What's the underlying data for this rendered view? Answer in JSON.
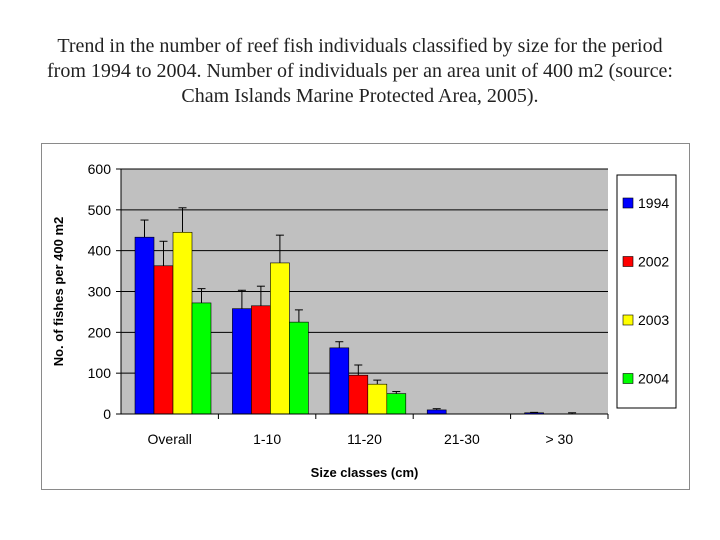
{
  "slide": {
    "title": "Trend in the number of reef fish individuals classified by size for the period from 1994 to 2004. Number of individuals per an area unit of 400 m2 (source: Cham Islands Marine Protected Area, 2005)."
  },
  "chart_data": {
    "type": "bar",
    "title": "",
    "xlabel": "Size classes (cm)",
    "ylabel": "No. of fishes per 400 m2",
    "ylim": [
      0,
      600
    ],
    "yticks": [
      0,
      100,
      200,
      300,
      400,
      500,
      600
    ],
    "grid": true,
    "legend_position": "right",
    "plot_background": "#c0c0c0",
    "categories": [
      "Overall",
      "1-10",
      "11-20",
      "21-30",
      "> 30"
    ],
    "series": [
      {
        "name": "1994",
        "color": "#0000ff",
        "values": [
          433,
          258,
          162,
          10,
          3
        ],
        "errors": [
          42,
          45,
          15,
          3,
          1
        ]
      },
      {
        "name": "2002",
        "color": "#ff0000",
        "values": [
          363,
          265,
          95,
          0,
          0
        ],
        "errors": [
          60,
          48,
          25,
          0,
          0
        ]
      },
      {
        "name": "2003",
        "color": "#ffff00",
        "values": [
          445,
          370,
          73,
          0,
          0
        ],
        "errors": [
          60,
          68,
          10,
          0,
          3
        ]
      },
      {
        "name": "2004",
        "color": "#00ff00",
        "values": [
          272,
          225,
          50,
          0,
          0
        ],
        "errors": [
          35,
          30,
          5,
          0,
          0
        ]
      }
    ]
  }
}
